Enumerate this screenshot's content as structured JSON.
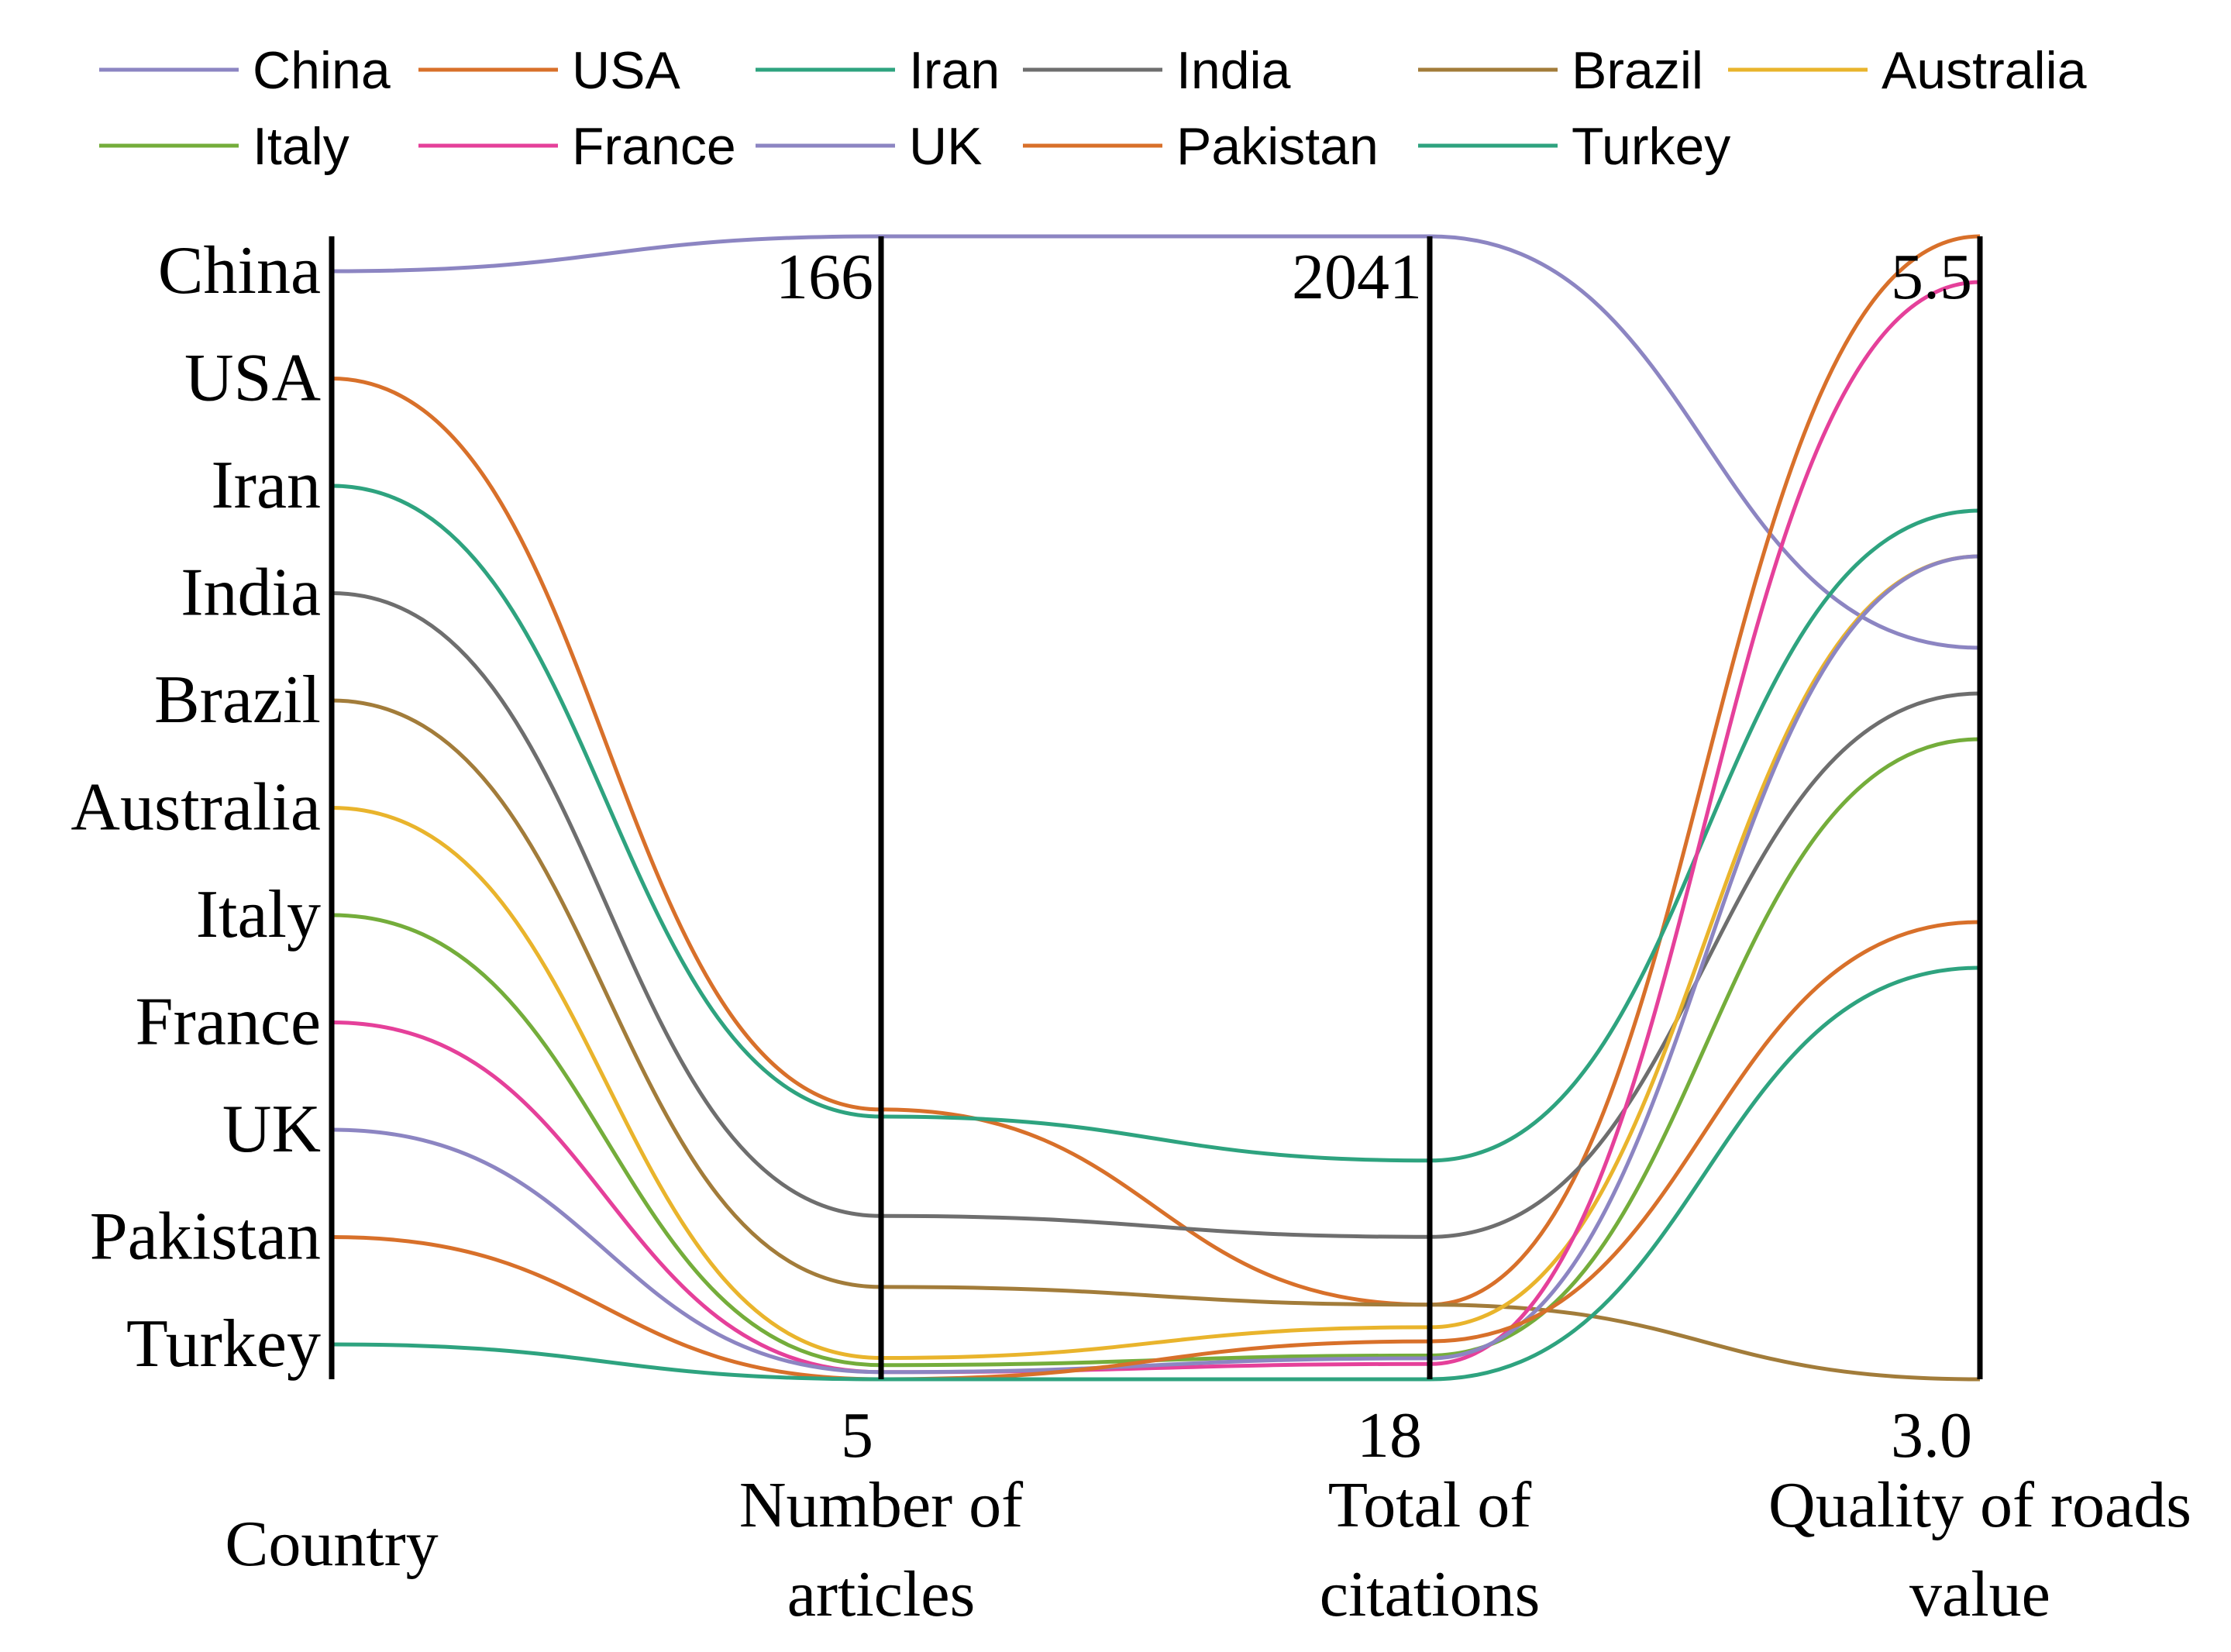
{
  "chart_data": {
    "type": "parallel-coordinates",
    "title": "",
    "legend_placement": "top",
    "axes": [
      {
        "name": "Country",
        "type": "categorical",
        "title_lines": [
          "Country"
        ]
      },
      {
        "name": "Number of articles",
        "type": "numeric",
        "min": 5,
        "max": 166,
        "min_label": "5",
        "max_label": "166",
        "title_lines": [
          "Number of",
          "articles"
        ]
      },
      {
        "name": "Total of citations",
        "type": "numeric",
        "min": 18,
        "max": 2041,
        "min_label": "18",
        "max_label": "2041",
        "title_lines": [
          "Total of",
          "citations"
        ]
      },
      {
        "name": "Quality of roads value",
        "type": "numeric",
        "min": 3.0,
        "max": 5.5,
        "min_label": "3.0",
        "max_label": "5.5",
        "title_lines": [
          "Quality of roads",
          "value"
        ]
      }
    ],
    "series": [
      {
        "name": "China",
        "color": "#8C85C2",
        "articles": 166,
        "citations": 2041,
        "road_quality": 4.6
      },
      {
        "name": "USA",
        "color": "#D8702A",
        "articles": 43,
        "citations": 150,
        "road_quality": 5.5
      },
      {
        "name": "Iran",
        "color": "#2EA37F",
        "articles": 42,
        "citations": 405,
        "road_quality": 4.9
      },
      {
        "name": "India",
        "color": "#6E6E6E",
        "articles": 28,
        "citations": 270,
        "road_quality": 4.5
      },
      {
        "name": "Brazil",
        "color": "#A27C3A",
        "articles": 18,
        "citations": 150,
        "road_quality": 3.0
      },
      {
        "name": "Australia",
        "color": "#E9B42C",
        "articles": 8,
        "citations": 110,
        "road_quality": 4.8
      },
      {
        "name": "Italy",
        "color": "#74AD3B",
        "articles": 7,
        "citations": 60,
        "road_quality": 4.4
      },
      {
        "name": "France",
        "color": "#E5409A",
        "articles": 6,
        "citations": 45,
        "road_quality": 5.4
      },
      {
        "name": "UK",
        "color": "#8C85C2",
        "articles": 6,
        "citations": 55,
        "road_quality": 4.8
      },
      {
        "name": "Pakistan",
        "color": "#D8702A",
        "articles": 5,
        "citations": 85,
        "road_quality": 4.0
      },
      {
        "name": "Turkey",
        "color": "#2EA37F",
        "articles": 5,
        "citations": 18,
        "road_quality": 3.9
      }
    ]
  }
}
